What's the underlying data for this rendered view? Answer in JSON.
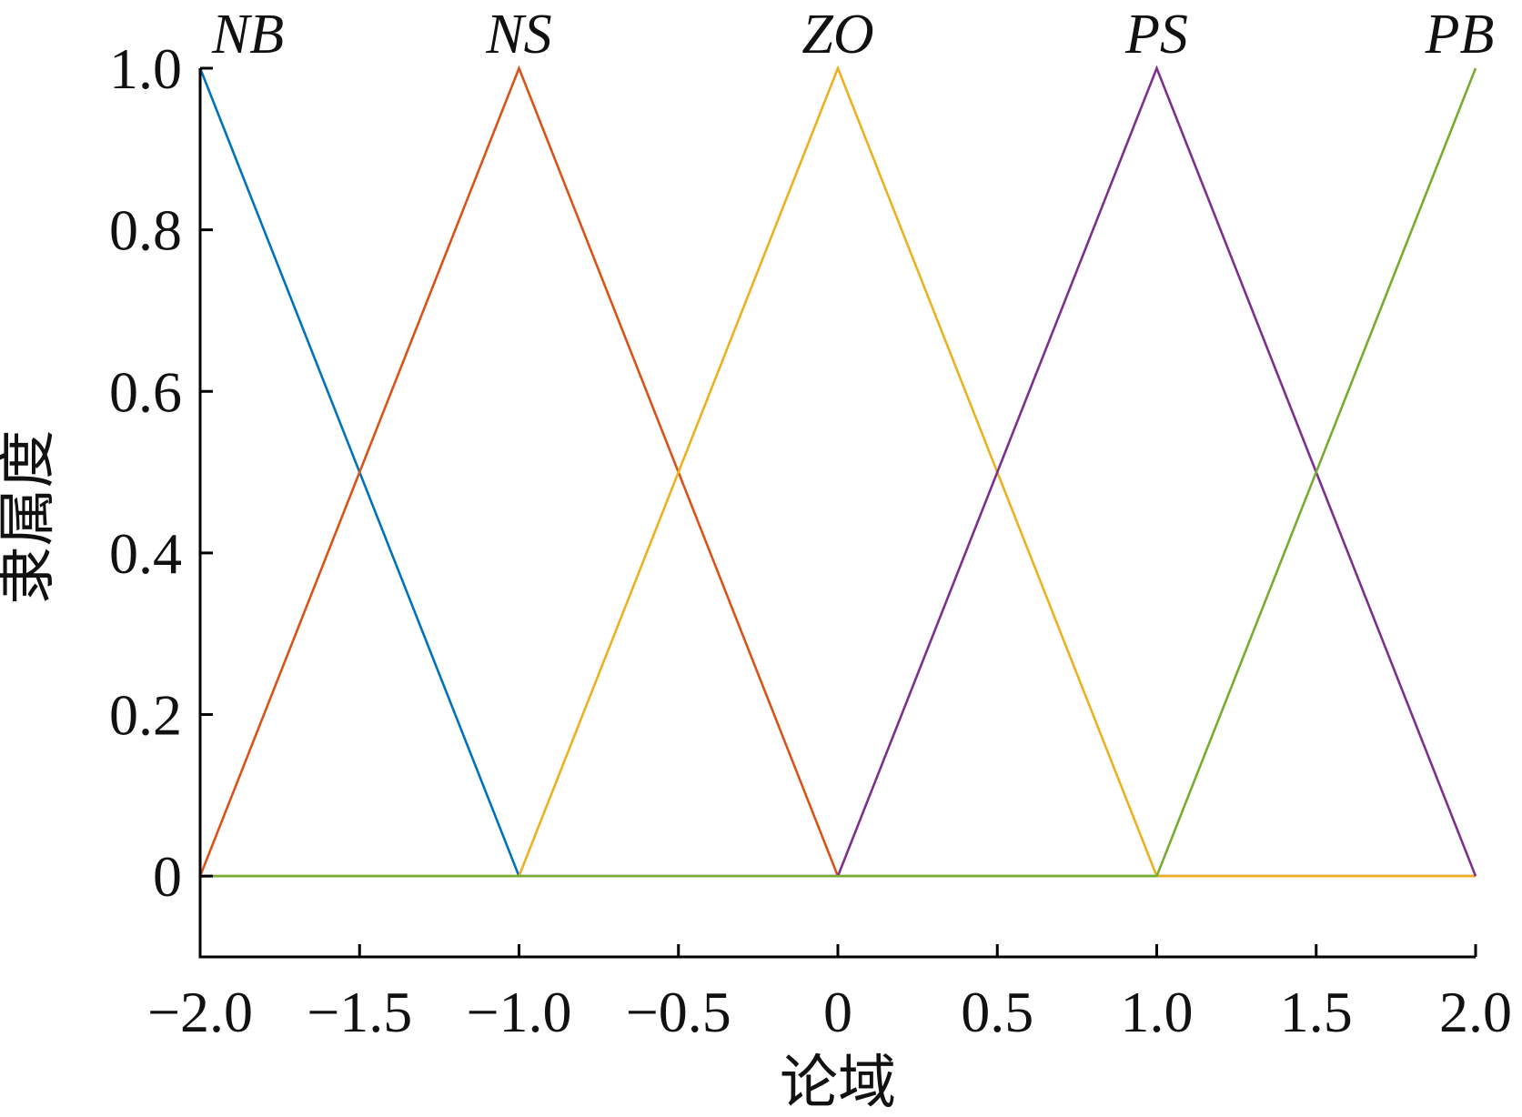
{
  "chart_data": {
    "type": "line",
    "xlabel": "论域",
    "ylabel": "隶属度",
    "xlim": [
      -2.0,
      2.0
    ],
    "ylim": [
      -0.1,
      1.0
    ],
    "grid": false,
    "x_ticks": [
      -2.0,
      -1.5,
      -1.0,
      -0.5,
      0,
      0.5,
      1.0,
      1.5,
      2.0
    ],
    "x_tick_labels": [
      "−2.0",
      "−1.5",
      "−1.0",
      "−0.5",
      "0",
      "0.5",
      "1.0",
      "1.5",
      "2.0"
    ],
    "y_ticks": [
      0,
      0.2,
      0.4,
      0.6,
      0.8,
      1.0
    ],
    "y_tick_labels": [
      "0",
      "0.2",
      "0.4",
      "0.6",
      "0.8",
      "1.0"
    ],
    "series": [
      {
        "name": "NB",
        "color": "#0072BD",
        "x": [
          -2.0,
          -1.0,
          2.0
        ],
        "y": [
          1.0,
          0.0,
          0.0
        ]
      },
      {
        "name": "NS",
        "color": "#D95319",
        "x": [
          -2.0,
          -1.0,
          0.0,
          2.0
        ],
        "y": [
          0.0,
          1.0,
          0.0,
          0.0
        ]
      },
      {
        "name": "ZO",
        "color": "#EDB120",
        "x": [
          -2.0,
          -1.0,
          0.0,
          1.0,
          2.0
        ],
        "y": [
          0.0,
          0.0,
          1.0,
          0.0,
          0.0
        ]
      },
      {
        "name": "PS",
        "color": "#7E2F8E",
        "x": [
          -2.0,
          0.0,
          1.0,
          2.0
        ],
        "y": [
          0.0,
          0.0,
          1.0,
          0.0
        ]
      },
      {
        "name": "PB",
        "color": "#77AC30",
        "x": [
          -2.0,
          1.0,
          2.0
        ],
        "y": [
          0.0,
          0.0,
          1.0
        ]
      }
    ],
    "annotations": [
      {
        "text": "NB",
        "x": -1.85
      },
      {
        "text": "NS",
        "x": -1.0
      },
      {
        "text": "ZO",
        "x": 0.0
      },
      {
        "text": "PS",
        "x": 1.0
      },
      {
        "text": "PB",
        "x": 1.95
      }
    ]
  }
}
